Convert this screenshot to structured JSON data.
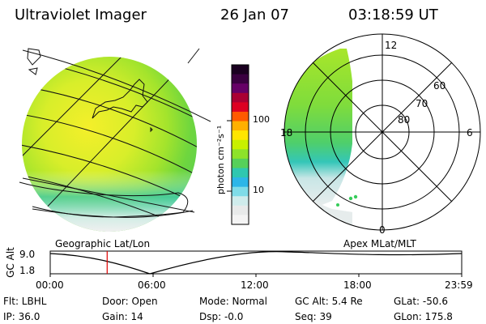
{
  "header": {
    "title": "Ultraviolet Imager",
    "date": "26 Jan 07",
    "time": "03:18:59 UT"
  },
  "colorbar": {
    "unit_label": "photon cm⁻²s⁻¹",
    "ticks": [
      "100",
      "10"
    ],
    "colors": [
      "#1a0020",
      "#3a0040",
      "#660066",
      "#aa0033",
      "#dd0022",
      "#ff5a00",
      "#ffb000",
      "#ffe600",
      "#c8f000",
      "#8de22a",
      "#56d05a",
      "#2fc7b0",
      "#2cb6e8",
      "#7fdce8",
      "#cfecec",
      "#e8eaea",
      "#f4f4f4"
    ]
  },
  "map_labels": {
    "left_projection": "Geographic Lat/Lon",
    "right_projection": "Apex  MLat/MLT"
  },
  "polar": {
    "mlt_labels": [
      "12",
      "18",
      "6",
      "0"
    ],
    "lat_labels": [
      "60",
      "70",
      "80"
    ]
  },
  "altitude_plot": {
    "ylabel": "GC Alt",
    "yticks": [
      "9.0",
      "1.8"
    ],
    "xticks": [
      "00:00",
      "06:00",
      "12:00",
      "18:00",
      "23:59"
    ],
    "marker_time": "03:19"
  },
  "status": {
    "flt": "Flt: LBHL",
    "ip": "IP: 36.0",
    "door": "Door: Open",
    "gain": "Gain: 14",
    "mode": "Mode: Normal",
    "dsp": "Dsp:    -0.0",
    "gc_alt": "GC Alt: 5.4 Re",
    "seq": "Seq: 39",
    "glat": "GLat: -50.6",
    "glon": "GLon: 175.8"
  }
}
